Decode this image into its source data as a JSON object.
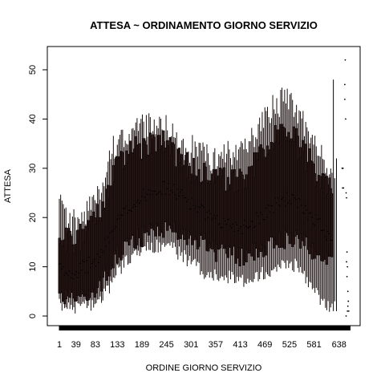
{
  "chart_data": {
    "type": "boxplot",
    "title": "ATTESA ~ ORDINAMENTO GIORNO SERVIZIO",
    "xlabel": "ORDINE GIORNO SERVIZIO",
    "ylabel": "ATTESA",
    "xlim": [
      1,
      663
    ],
    "ylim": [
      0,
      52
    ],
    "x_ticks": [
      1,
      39,
      83,
      133,
      189,
      245,
      301,
      357,
      413,
      469,
      525,
      581,
      638
    ],
    "y_ticks": [
      0,
      10,
      20,
      30,
      40,
      50
    ],
    "grid": false,
    "legend": "none",
    "box_fill": "#2a1816",
    "box_color": "#000000",
    "trend": {
      "x": [
        1,
        10,
        20,
        39,
        60,
        83,
        100,
        115,
        133,
        160,
        189,
        215,
        245,
        270,
        301,
        330,
        357,
        385,
        413,
        440,
        469,
        500,
        525,
        555,
        581,
        610,
        638,
        650
      ],
      "q1": [
        4,
        4,
        4,
        4,
        4,
        5,
        7,
        9,
        12,
        15,
        16,
        17,
        18,
        17,
        16,
        15,
        13,
        13,
        12,
        13,
        14,
        15,
        16,
        15,
        13,
        11,
        10,
        8
      ],
      "median": [
        10,
        9,
        9,
        9,
        10,
        11,
        13,
        16,
        19,
        22,
        24,
        26,
        26,
        25,
        23,
        21,
        19,
        19,
        18,
        19,
        21,
        23,
        24,
        22,
        20,
        17,
        15,
        13
      ],
      "q3": [
        17,
        16,
        15,
        15,
        17,
        19,
        22,
        26,
        30,
        33,
        34,
        36,
        35,
        32,
        30,
        29,
        27,
        28,
        27,
        30,
        34,
        37,
        38,
        33,
        30,
        26,
        24,
        22
      ],
      "upper": [
        23,
        21,
        19,
        19,
        21,
        24,
        28,
        32,
        36,
        37,
        38,
        39,
        38,
        35,
        34,
        33,
        31,
        33,
        33,
        36,
        41,
        43,
        45,
        40,
        35,
        30,
        26,
        24
      ],
      "lower": [
        2,
        2,
        2,
        2,
        2,
        3,
        4,
        6,
        9,
        12,
        13,
        14,
        15,
        13,
        11,
        9,
        8,
        8,
        7,
        8,
        9,
        10,
        11,
        9,
        5,
        2,
        2,
        4
      ]
    },
    "special_whiskers": [
      {
        "x": 625,
        "low": 1,
        "high": 48
      },
      {
        "x": 628,
        "low": 3,
        "high": 28
      },
      {
        "x": 632,
        "low": 1,
        "high": 32
      }
    ],
    "outliers": [
      {
        "x": 645,
        "y": 30
      },
      {
        "x": 647,
        "y": 30
      },
      {
        "x": 646,
        "y": 26
      },
      {
        "x": 648,
        "y": 26
      },
      {
        "x": 652,
        "y": 52
      },
      {
        "x": 651,
        "y": 47
      },
      {
        "x": 651,
        "y": 44
      },
      {
        "x": 653,
        "y": 40
      },
      {
        "x": 654,
        "y": 25
      },
      {
        "x": 655,
        "y": 24
      },
      {
        "x": 656,
        "y": 13
      },
      {
        "x": 655,
        "y": 11
      },
      {
        "x": 657,
        "y": 10
      },
      {
        "x": 656,
        "y": 8
      },
      {
        "x": 658,
        "y": 5
      },
      {
        "x": 659,
        "y": 3
      },
      {
        "x": 658,
        "y": 2
      },
      {
        "x": 660,
        "y": 1
      },
      {
        "x": 654,
        "y": 0
      },
      {
        "x": 657,
        "y": 1
      }
    ]
  }
}
